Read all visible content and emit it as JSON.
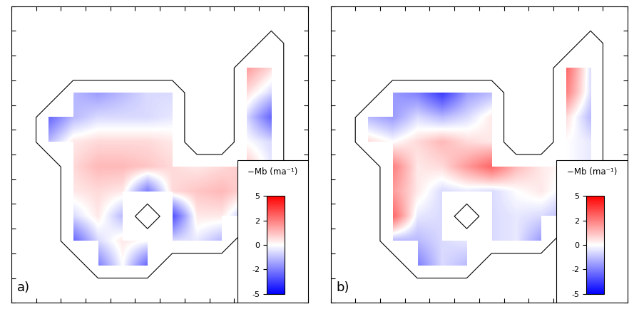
{
  "chart_data": [
    {
      "type": "heatmap",
      "label": "a)",
      "tick_labels": false,
      "colorbar_label": "−Mb (ma⁻¹)",
      "colorbar_range": [
        -5,
        5
      ],
      "colorbar_ticks": [
        -5,
        -2,
        0,
        2,
        5
      ],
      "cells": [
        [
          null,
          null,
          null,
          null,
          null,
          null,
          null,
          null,
          null,
          null,
          null,
          null
        ],
        [
          null,
          null,
          null,
          null,
          null,
          null,
          null,
          null,
          null,
          null,
          -0.5,
          null
        ],
        [
          null,
          null,
          null,
          null,
          null,
          null,
          null,
          null,
          null,
          1.5,
          0.5,
          null
        ],
        [
          null,
          null,
          -1,
          -1.5,
          -1,
          -0.5,
          -0.5,
          null,
          null,
          0.5,
          -0.5,
          null
        ],
        [
          null,
          -2.5,
          -1,
          -0.5,
          -0.5,
          -0.5,
          -0.3,
          null,
          null,
          -0.5,
          -2.5,
          null
        ],
        [
          null,
          -1,
          0.3,
          0.5,
          0.5,
          0.5,
          0.3,
          null,
          null,
          0,
          -0.5,
          null
        ],
        [
          null,
          null,
          0.5,
          1,
          1,
          0.8,
          0.5,
          0.3,
          0.5,
          0.8,
          -0.3,
          null
        ],
        [
          null,
          null,
          0.3,
          0.5,
          0.3,
          -2,
          0.5,
          0.8,
          1,
          0.5,
          -0.5,
          null
        ],
        [
          null,
          null,
          -0.5,
          0.3,
          -1,
          null,
          -3,
          0.3,
          0.3,
          -1,
          null,
          null
        ],
        [
          null,
          null,
          -2.5,
          -0.5,
          0.3,
          0,
          -0.5,
          -0.3,
          -1,
          null,
          null,
          null
        ],
        [
          null,
          null,
          null,
          -2,
          0,
          -2.5,
          null,
          null,
          null,
          null,
          null,
          null
        ],
        [
          null,
          null,
          null,
          null,
          null,
          null,
          null,
          null,
          null,
          null,
          null,
          null
        ]
      ]
    },
    {
      "type": "heatmap",
      "label": "b)",
      "tick_labels": false,
      "colorbar_label": "−Mb (ma⁻¹)",
      "colorbar_range": [
        -5,
        5
      ],
      "colorbar_ticks": [
        -5,
        -2,
        0,
        2,
        5
      ],
      "cells": [
        [
          null,
          null,
          null,
          null,
          null,
          null,
          null,
          null,
          null,
          null,
          null,
          null
        ],
        [
          null,
          null,
          null,
          null,
          null,
          null,
          null,
          null,
          null,
          null,
          -0.3,
          null
        ],
        [
          null,
          null,
          null,
          null,
          null,
          null,
          null,
          null,
          null,
          2.5,
          -0.5,
          null
        ],
        [
          null,
          null,
          -1.5,
          -2,
          -3.5,
          -1.5,
          -1,
          null,
          null,
          2,
          -0.5,
          null
        ],
        [
          null,
          -1,
          -1.5,
          -0.5,
          -1,
          -0.5,
          0.3,
          null,
          null,
          0.5,
          -1,
          null
        ],
        [
          null,
          0.5,
          0,
          0.5,
          1,
          0.5,
          0.3,
          null,
          null,
          0,
          -0.3,
          null
        ],
        [
          null,
          null,
          2,
          0.3,
          0.5,
          1.5,
          2.5,
          1,
          0.3,
          0,
          -0.3,
          null
        ],
        [
          null,
          null,
          1.5,
          0.3,
          -0.5,
          -0.3,
          -0.5,
          0,
          0.3,
          -0.3,
          -0.5,
          null
        ],
        [
          null,
          null,
          2.5,
          -0.3,
          -0.5,
          null,
          -0.5,
          -0.3,
          -0.5,
          -1,
          null,
          null
        ],
        [
          null,
          null,
          -1,
          -1,
          -0.5,
          -0.3,
          -0.5,
          -0.3,
          -1.5,
          null,
          null,
          null
        ],
        [
          null,
          null,
          null,
          -2,
          -0.5,
          -1,
          null,
          null,
          null,
          null,
          null,
          null
        ],
        [
          null,
          null,
          null,
          null,
          null,
          null,
          null,
          null,
          null,
          null,
          null,
          null
        ]
      ]
    }
  ]
}
